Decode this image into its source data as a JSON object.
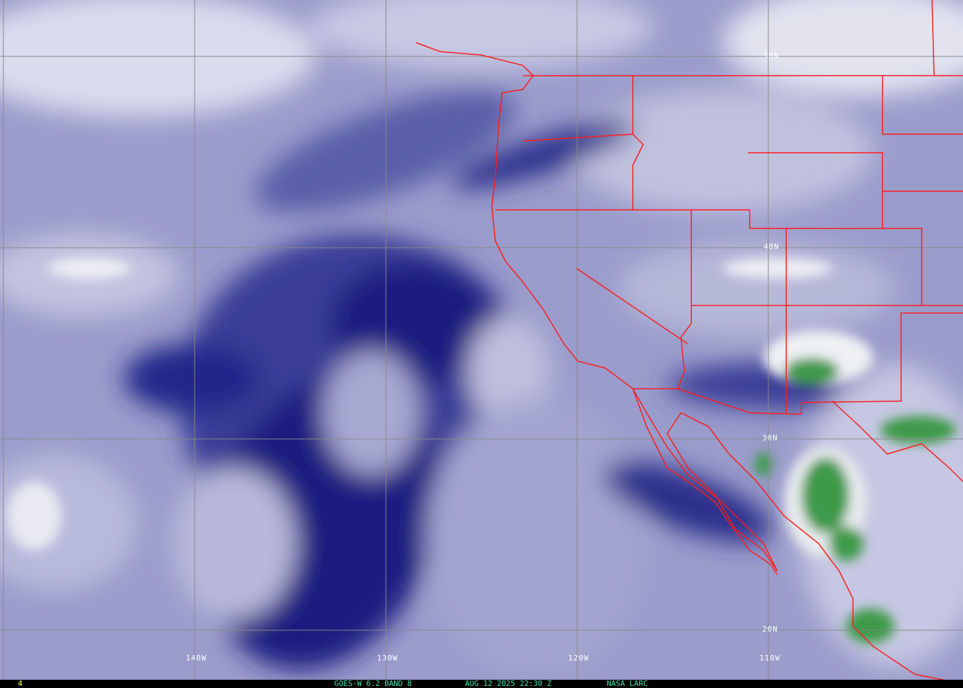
{
  "map": {
    "lat_labels": [
      "50N",
      "40N",
      "30N",
      "20N"
    ],
    "lon_labels": [
      "140W",
      "130W",
      "120W",
      "110W"
    ],
    "colors": {
      "border": "#ff1a1a",
      "grid": "#888888",
      "dry": "#1a1f80",
      "moist": "#d8d9ec",
      "cloud_green": "#3c9a4a",
      "background": "#9a9ccb"
    }
  },
  "status_bar": {
    "frame": "4",
    "product": "GOES-W 6.2 BAND 8",
    "datetime": "AUG 12 2025 22:30 Z",
    "source": "NASA LARC"
  }
}
